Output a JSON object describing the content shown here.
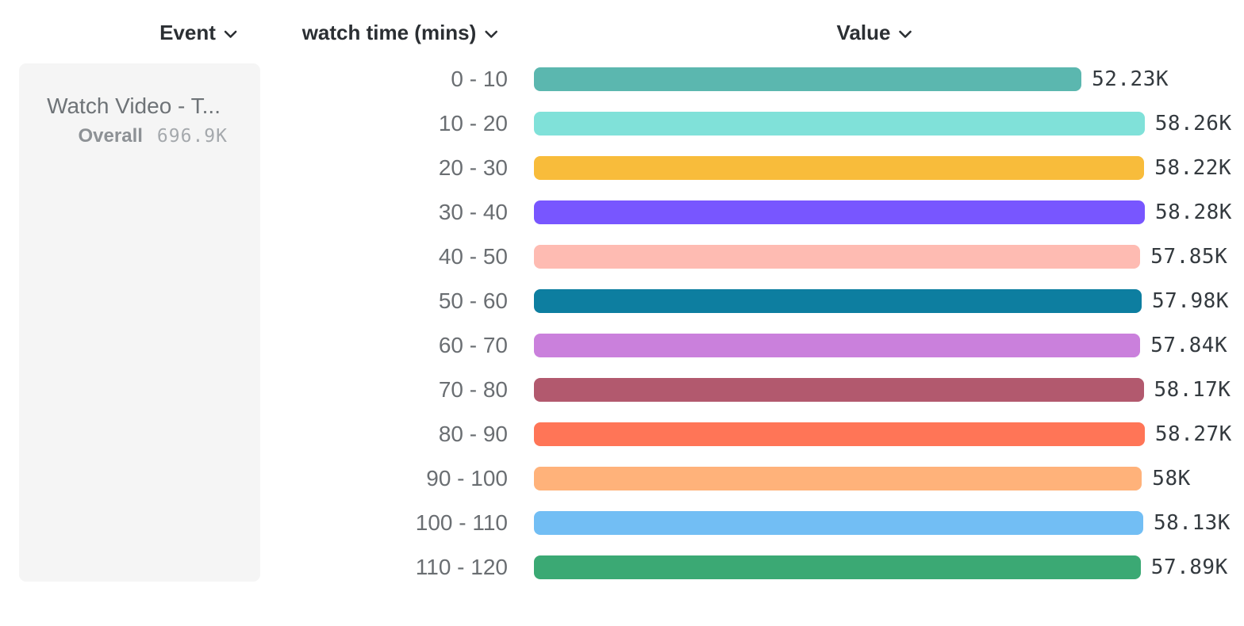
{
  "header": {
    "columns": [
      {
        "label": "Event"
      },
      {
        "label": "watch time (mins)"
      },
      {
        "label": "Value"
      }
    ]
  },
  "event_card": {
    "name": "Watch Video - T...",
    "overall_label": "Overall",
    "overall_value": "696.9K"
  },
  "chart_data": {
    "type": "bar",
    "orientation": "horizontal",
    "title": "",
    "xlabel": "Value",
    "ylabel": "watch time (mins)",
    "categories": [
      "0 - 10",
      "10 - 20",
      "20 - 30",
      "30 - 40",
      "40 - 50",
      "50 - 60",
      "60 - 70",
      "70 - 80",
      "80 - 90",
      "90 - 100",
      "100 - 110",
      "110 - 120"
    ],
    "values": [
      52230,
      58260,
      58220,
      58280,
      57850,
      57980,
      57840,
      58170,
      58270,
      58000,
      58130,
      57890
    ],
    "value_labels": [
      "52.23K",
      "58.26K",
      "58.22K",
      "58.28K",
      "57.85K",
      "57.98K",
      "57.84K",
      "58.17K",
      "58.27K",
      "58K",
      "58.13K",
      "57.89K"
    ],
    "bar_colors": [
      "#5bb7af",
      "#80e1d9",
      "#f8bc3b",
      "#7856ff",
      "#febbb2",
      "#0d7ea0",
      "#ca80dc",
      "#b2596e",
      "#ff7557",
      "#ffb27a",
      "#72bef4",
      "#3ba974"
    ],
    "axis_max": 58280,
    "overall_total": 696900,
    "grid": false,
    "legend": false
  },
  "icons": {
    "chevron_down": "chevron-down"
  }
}
